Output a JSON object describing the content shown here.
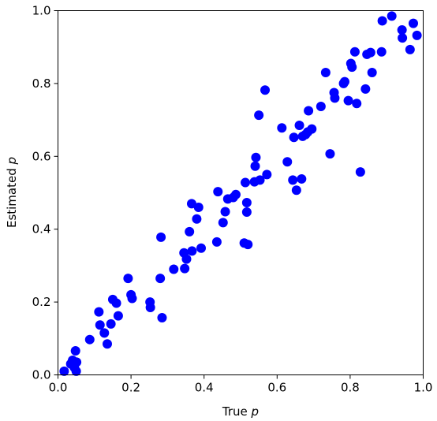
{
  "chart_data": {
    "type": "scatter",
    "title": "",
    "xlabel": {
      "text": "True ",
      "var": "p"
    },
    "ylabel": {
      "text": "Estimated ",
      "var": "p"
    },
    "xlim": [
      0,
      1
    ],
    "ylim": [
      0,
      1
    ],
    "x_ticks": [
      "0.0",
      "0.2",
      "0.4",
      "0.6",
      "0.8",
      "1.0"
    ],
    "y_ticks": [
      "0.0",
      "0.2",
      "0.4",
      "0.6",
      "0.8",
      "1.0"
    ],
    "grid": false,
    "legend": "none",
    "marker_color": "#0000ff",
    "points": [
      [
        0.017,
        0.01
      ],
      [
        0.035,
        0.03
      ],
      [
        0.04,
        0.04
      ],
      [
        0.045,
        0.02
      ],
      [
        0.048,
        0.066
      ],
      [
        0.05,
        0.01
      ],
      [
        0.051,
        0.035
      ],
      [
        0.087,
        0.097
      ],
      [
        0.112,
        0.173
      ],
      [
        0.115,
        0.137
      ],
      [
        0.127,
        0.115
      ],
      [
        0.135,
        0.085
      ],
      [
        0.145,
        0.14
      ],
      [
        0.15,
        0.207
      ],
      [
        0.16,
        0.197
      ],
      [
        0.165,
        0.162
      ],
      [
        0.192,
        0.265
      ],
      [
        0.2,
        0.22
      ],
      [
        0.203,
        0.21
      ],
      [
        0.252,
        0.2
      ],
      [
        0.253,
        0.185
      ],
      [
        0.28,
        0.265
      ],
      [
        0.282,
        0.378
      ],
      [
        0.285,
        0.157
      ],
      [
        0.317,
        0.29
      ],
      [
        0.345,
        0.335
      ],
      [
        0.347,
        0.292
      ],
      [
        0.352,
        0.318
      ],
      [
        0.36,
        0.393
      ],
      [
        0.366,
        0.47
      ],
      [
        0.367,
        0.34
      ],
      [
        0.38,
        0.428
      ],
      [
        0.385,
        0.46
      ],
      [
        0.392,
        0.348
      ],
      [
        0.435,
        0.365
      ],
      [
        0.438,
        0.503
      ],
      [
        0.452,
        0.418
      ],
      [
        0.458,
        0.448
      ],
      [
        0.465,
        0.483
      ],
      [
        0.48,
        0.487
      ],
      [
        0.487,
        0.495
      ],
      [
        0.51,
        0.362
      ],
      [
        0.513,
        0.528
      ],
      [
        0.517,
        0.447
      ],
      [
        0.517,
        0.473
      ],
      [
        0.52,
        0.358
      ],
      [
        0.538,
        0.53
      ],
      [
        0.54,
        0.573
      ],
      [
        0.542,
        0.597
      ],
      [
        0.55,
        0.713
      ],
      [
        0.553,
        0.535
      ],
      [
        0.567,
        0.782
      ],
      [
        0.572,
        0.55
      ],
      [
        0.613,
        0.678
      ],
      [
        0.628,
        0.585
      ],
      [
        0.643,
        0.535
      ],
      [
        0.646,
        0.652
      ],
      [
        0.653,
        0.507
      ],
      [
        0.661,
        0.685
      ],
      [
        0.667,
        0.538
      ],
      [
        0.67,
        0.655
      ],
      [
        0.678,
        0.66
      ],
      [
        0.684,
        0.667
      ],
      [
        0.686,
        0.725
      ],
      [
        0.695,
        0.675
      ],
      [
        0.72,
        0.737
      ],
      [
        0.733,
        0.83
      ],
      [
        0.745,
        0.607
      ],
      [
        0.756,
        0.775
      ],
      [
        0.758,
        0.76
      ],
      [
        0.782,
        0.8
      ],
      [
        0.785,
        0.805
      ],
      [
        0.795,
        0.753
      ],
      [
        0.802,
        0.855
      ],
      [
        0.805,
        0.845
      ],
      [
        0.813,
        0.887
      ],
      [
        0.818,
        0.745
      ],
      [
        0.828,
        0.557
      ],
      [
        0.842,
        0.785
      ],
      [
        0.846,
        0.88
      ],
      [
        0.856,
        0.885
      ],
      [
        0.86,
        0.83
      ],
      [
        0.886,
        0.887
      ],
      [
        0.888,
        0.972
      ],
      [
        0.914,
        0.985
      ],
      [
        0.942,
        0.947
      ],
      [
        0.943,
        0.925
      ],
      [
        0.964,
        0.893
      ],
      [
        0.973,
        0.965
      ],
      [
        0.983,
        0.932
      ]
    ]
  }
}
